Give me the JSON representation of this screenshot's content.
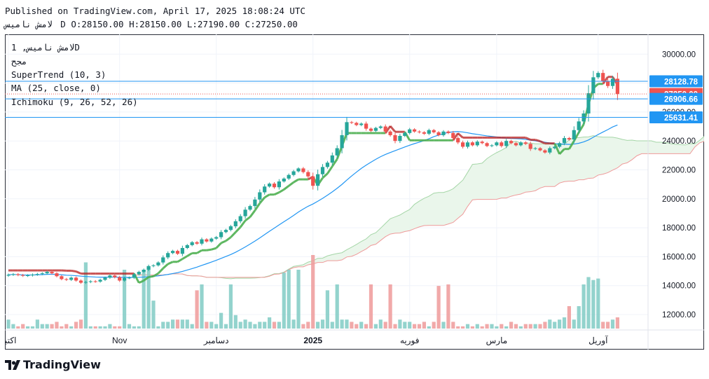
{
  "header": {
    "published": "Published on TradingView.com, April 17, 2025 18:08:24 UTC",
    "symbol": "لامش ناميس",
    "ohlc": "D O:28150.00 H:28150.00 L:27190.00 C:27250.00"
  },
  "legend": {
    "symbol": "لامش ناميس, 1D",
    "exchange": "مجح",
    "supertrend": "SuperTrend (10, 3)",
    "ma": "MA (25, close, 0)",
    "ichimoku": "Ichimoku (9, 26, 52, 26)"
  },
  "brand": {
    "name": "TradingView"
  },
  "colors": {
    "up": "#26a69a",
    "down": "#ef5350",
    "supertrend": "#4caf50",
    "ma": "#2196f3",
    "cloud_fill": "#e8f5e9",
    "span_a": "#a5d6a7",
    "span_b": "#ef9a9a",
    "hline": "#2196f3"
  },
  "chart_data": {
    "type": "candlestick",
    "ylim": [
      11000,
      31000
    ],
    "y_ticks": [
      12000,
      14000,
      16000,
      18000,
      20000,
      22000,
      24000,
      26000,
      28000,
      30000
    ],
    "y_tick_labels": [
      "12000.00",
      "14000.00",
      "16000.00",
      "18000.00",
      "20000.00",
      "22000.00",
      "24000.00",
      "26000.00",
      "28000.00",
      "30000.00"
    ],
    "x_ticks": [
      {
        "label": "اكتبر",
        "index": 0
      },
      {
        "label": "Nov",
        "index": 23
      },
      {
        "label": "دسامبر",
        "index": 43
      },
      {
        "label": "2025",
        "index": 63
      },
      {
        "label": "فوريه",
        "index": 83
      },
      {
        "label": "مارس",
        "index": 101
      },
      {
        "label": "آوريل",
        "index": 122
      }
    ],
    "price_labels": [
      {
        "value": 28128.78,
        "text": "28128.78",
        "color": "#2196f3",
        "line": "solid"
      },
      {
        "value": 27250.0,
        "text": "27250.00",
        "color": "#ef5350",
        "line": "dotted"
      },
      {
        "value": 26906.66,
        "text": "26906.66",
        "color": "#2196f3",
        "line": "solid"
      },
      {
        "value": 25631.41,
        "text": "25631.41",
        "color": "#2196f3",
        "line": "solid"
      }
    ],
    "closes": [
      14750,
      14790,
      14730,
      14680,
      14710,
      14760,
      14800,
      14850,
      14950,
      14850,
      14650,
      14450,
      14400,
      14550,
      14350,
      14200,
      14250,
      14300,
      14280,
      14400,
      14550,
      14700,
      14580,
      14350,
      14530,
      14550,
      14780,
      14950,
      15100,
      15350,
      15400,
      15600,
      15950,
      16250,
      16400,
      16200,
      16600,
      16800,
      17000,
      16900,
      17200,
      17050,
      17250,
      17350,
      17700,
      17850,
      18100,
      18450,
      18800,
      19250,
      19500,
      19950,
      20450,
      20850,
      21050,
      20800,
      21200,
      21400,
      21650,
      21900,
      22100,
      21850,
      21550,
      20900,
      21700,
      22200,
      22500,
      23000,
      23500,
      24400,
      25300,
      25250,
      25100,
      25200,
      24850,
      24700,
      24900,
      25000,
      24650,
      24400,
      24000,
      24350,
      24550,
      24800,
      24650,
      24600,
      24500,
      24750,
      24600,
      24400,
      24650,
      24550,
      24200,
      23900,
      23600,
      23900,
      23700,
      23950,
      23850,
      23650,
      23700,
      23900,
      23650,
      24000,
      23850,
      23700,
      23900,
      23800,
      23450,
      23500,
      23350,
      23200,
      23500,
      23600,
      23850,
      24200,
      24100,
      24750,
      25350,
      25900,
      27300,
      28400,
      28700,
      28150,
      27800,
      28300,
      27250
    ],
    "volumes": [
      4,
      2,
      1,
      2,
      1,
      1,
      4,
      2,
      2,
      2,
      3,
      1,
      2,
      1,
      3,
      4,
      1,
      1,
      1,
      1,
      1,
      2,
      1,
      1,
      3,
      2,
      1,
      1,
      2,
      2,
      3,
      1,
      3,
      3,
      4,
      4,
      4,
      4,
      2,
      3,
      4,
      3,
      3,
      2,
      7,
      2,
      3,
      6,
      3,
      4,
      3,
      2,
      3,
      3,
      5,
      3,
      3,
      4,
      5,
      4,
      4,
      2,
      3,
      4,
      3,
      4,
      5,
      3,
      3,
      4,
      4,
      3,
      2,
      3,
      2,
      3,
      2,
      4,
      3,
      3,
      2,
      4,
      3,
      3,
      2,
      2,
      3,
      1,
      3,
      3,
      3,
      2,
      3,
      1,
      1,
      2,
      1,
      2,
      1,
      2,
      2,
      1,
      2,
      1,
      3,
      2,
      1,
      2,
      2,
      2,
      2,
      3,
      4,
      3,
      4,
      5,
      10,
      4,
      10,
      12,
      10,
      6,
      2,
      3,
      3,
      4,
      5
    ],
    "big_volumes": {
      "79": 30,
      "89": 29,
      "91": 30,
      "75": 30,
      "63": 50,
      "66": 26,
      "68": 30,
      "119": 30,
      "120": 35,
      "121": 33,
      "122": 34,
      "28": 40,
      "29": 40,
      "30": 19,
      "39": 26,
      "40": 30,
      "46": 30,
      "57": 38,
      "58": 40,
      "60": 40,
      "24": 40,
      "16": 45
    }
  }
}
